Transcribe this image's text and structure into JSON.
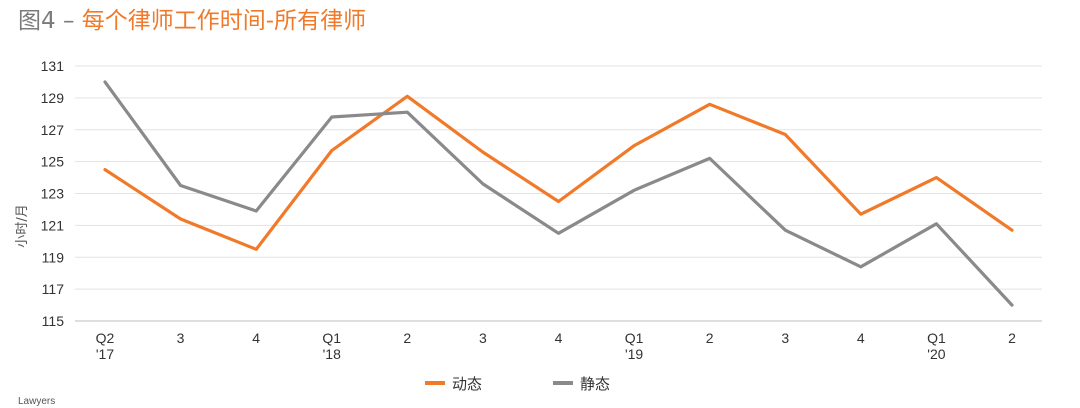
{
  "title": {
    "prefix": "图4 –",
    "main": "每个律师工作时间-所有律师"
  },
  "footnote": "Lawyers",
  "chart_data": {
    "type": "line",
    "title": "图4 – 每个律师工作时间-所有律师",
    "ylabel": "小时/月",
    "xlabel": "",
    "ylim": [
      115,
      131
    ],
    "yticks": [
      115,
      117,
      119,
      121,
      123,
      125,
      127,
      129,
      131
    ],
    "grid": true,
    "legend_position": "bottom-center",
    "categories": [
      [
        "Q2",
        "'17"
      ],
      [
        "3"
      ],
      [
        "4"
      ],
      [
        "Q1",
        "'18"
      ],
      [
        "2"
      ],
      [
        "3"
      ],
      [
        "4"
      ],
      [
        "Q1",
        "'19"
      ],
      [
        "2"
      ],
      [
        "3"
      ],
      [
        "4"
      ],
      [
        "Q1",
        "'20"
      ],
      [
        "2"
      ]
    ],
    "series": [
      {
        "name": "动态",
        "color": "#f07a2a",
        "values": [
          124.5,
          121.4,
          119.5,
          125.7,
          129.1,
          125.6,
          122.5,
          126.0,
          128.6,
          126.7,
          121.7,
          124.0,
          120.7
        ]
      },
      {
        "name": "静态",
        "color": "#8a8a8a",
        "values": [
          130.0,
          123.5,
          121.9,
          127.8,
          128.1,
          123.6,
          120.5,
          123.2,
          125.2,
          120.7,
          118.4,
          121.1,
          116.0
        ]
      }
    ]
  }
}
